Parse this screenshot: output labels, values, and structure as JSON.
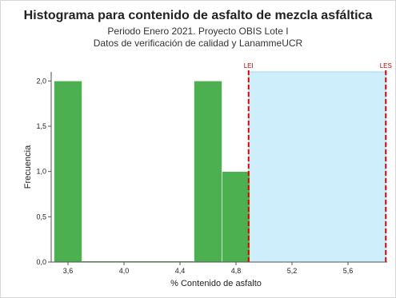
{
  "chart_data": {
    "type": "bar",
    "title": "Histograma para contenido de asfalto de mezcla asfáltica",
    "subtitle_lines": [
      "Periodo Enero 2021. Proyecto OBIS Lote I",
      "Datos de verificación de calidad y LanammeUCR"
    ],
    "xlabel": "% Contenido de asfalto",
    "ylabel": "Frecuencia",
    "xlim": [
      3.48,
      5.88
    ],
    "ylim": [
      0,
      2.1
    ],
    "x_ticks": [
      {
        "value": 3.6,
        "label": "3,6"
      },
      {
        "value": 4.0,
        "label": "4,0"
      },
      {
        "value": 4.4,
        "label": "4,4"
      },
      {
        "value": 4.8,
        "label": "4,8"
      },
      {
        "value": 5.2,
        "label": "5,2"
      },
      {
        "value": 5.6,
        "label": "5,6"
      }
    ],
    "y_ticks": [
      {
        "value": 0.0,
        "label": "0,0"
      },
      {
        "value": 0.5,
        "label": "0,5"
      },
      {
        "value": 1.0,
        "label": "1,0"
      },
      {
        "value": 1.5,
        "label": "1,5"
      },
      {
        "value": 2.0,
        "label": "2,0"
      }
    ],
    "bins": [
      {
        "start": 3.5,
        "end": 3.7,
        "count": 2
      },
      {
        "start": 3.7,
        "end": 3.9,
        "count": 0
      },
      {
        "start": 3.9,
        "end": 4.1,
        "count": 0
      },
      {
        "start": 4.1,
        "end": 4.3,
        "count": 0
      },
      {
        "start": 4.3,
        "end": 4.5,
        "count": 0
      },
      {
        "start": 4.5,
        "end": 4.7,
        "count": 2
      },
      {
        "start": 4.7,
        "end": 4.9,
        "count": 1
      }
    ],
    "limits": [
      {
        "name": "LEI",
        "value": 4.89
      },
      {
        "name": "LES",
        "value": 5.87
      }
    ],
    "colors": {
      "bar": "#4caf50",
      "bar_edge": "#ffffff",
      "spec_zone": "#cdeefa",
      "spec_zone_edge": "#9fd8ef",
      "limit_line": "#e00000",
      "limit_text": "#c00000"
    },
    "grid": false
  }
}
